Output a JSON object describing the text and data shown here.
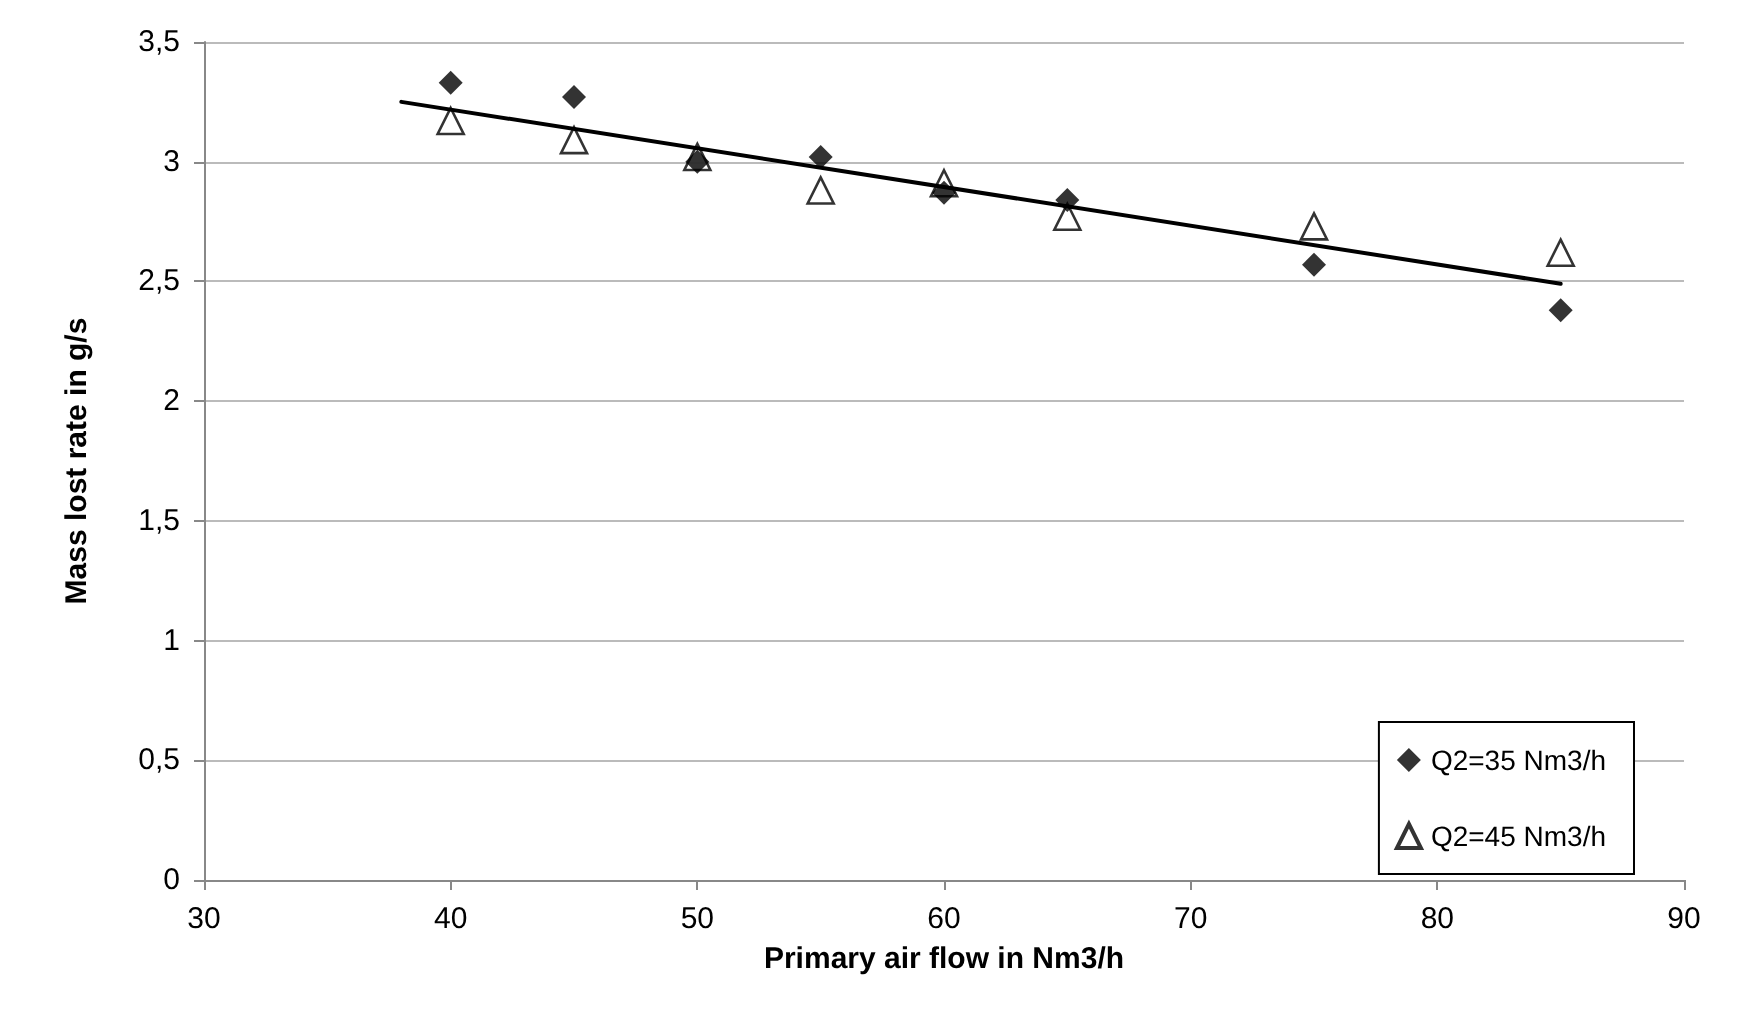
{
  "chart_data": {
    "type": "scatter",
    "xlabel": "Primary air flow in Nm3/h",
    "ylabel": "Mass lost rate in g/s",
    "x": [
      40,
      45,
      50,
      55,
      60,
      65,
      75,
      85
    ],
    "series": [
      {
        "name": "Q2=35 Nm3/h",
        "color": "#000000",
        "marker": "diamond",
        "values": [
          3.33,
          3.27,
          3.0,
          3.02,
          2.87,
          2.84,
          2.57,
          2.38
        ]
      },
      {
        "name": "Q2=45 Nm3/h",
        "color": "#000000",
        "marker": "triangle",
        "values": [
          3.17,
          3.09,
          3.02,
          2.88,
          2.91,
          2.77,
          2.73,
          2.62
        ]
      },
      {
        "type": "line",
        "color": "#000000",
        "marker": "none",
        "x": [
          38,
          85
        ],
        "values": [
          3.25,
          2.49
        ]
      }
    ],
    "xlim": [
      30,
      90
    ],
    "xticks": [
      30,
      40,
      50,
      60,
      70,
      80,
      90
    ],
    "ylim": [
      0,
      3.5
    ],
    "yticks": [
      {
        "value": 0,
        "label": "0"
      },
      {
        "value": 0.5,
        "label": "0,5"
      },
      {
        "value": 1,
        "label": "1"
      },
      {
        "value": 1.5,
        "label": "1,5"
      },
      {
        "value": 2,
        "label": "2"
      },
      {
        "value": 2.5,
        "label": "2,5"
      },
      {
        "value": 3,
        "label": "3"
      },
      {
        "value": 3.5,
        "label": "3,5"
      }
    ],
    "grid": "y",
    "legend": "bottom right"
  }
}
